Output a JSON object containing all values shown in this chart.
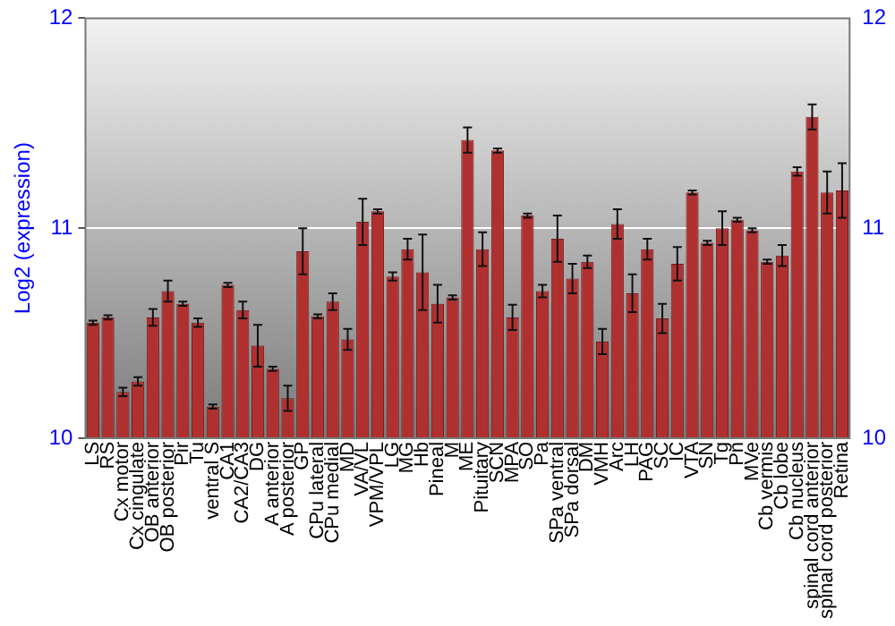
{
  "chart_data": {
    "type": "bar",
    "ylabel": "Log2 (expression)",
    "categories": [
      "LS",
      "RS",
      "Cx motor",
      "Cx cingulate",
      "OB anterior",
      "OB posterior",
      "Pir",
      "Tu",
      "ventral S",
      "CA1",
      "CA2/CA3",
      "DG",
      "A anterior",
      "A posterior",
      "GP",
      "CPu lateral",
      "CPu medial",
      "MD",
      "VA/VL",
      "VPM/VPL",
      "LG",
      "MG",
      "Hb",
      "Pineal",
      "M",
      "ME",
      "Pituitary",
      "SCN",
      "MPA",
      "SO",
      "Pa",
      "SPa ventral",
      "SPa dorsal",
      "DM",
      "VMH",
      "Arc",
      "LH",
      "PAG",
      "SC",
      "IC",
      "VTA",
      "SN",
      "Tg",
      "Pn",
      "MVe",
      "Cb vermis",
      "Cb lobe",
      "Cb nucleus",
      "spinal cord anterior",
      "spinal cord posterior",
      "Retina"
    ],
    "values": [
      10.55,
      10.575,
      10.22,
      10.27,
      10.575,
      10.7,
      10.64,
      10.55,
      10.15,
      10.73,
      10.61,
      10.44,
      10.33,
      10.19,
      10.89,
      10.58,
      10.65,
      10.47,
      11.03,
      11.08,
      10.77,
      10.9,
      10.79,
      10.64,
      10.67,
      11.42,
      10.9,
      11.37,
      10.575,
      11.06,
      10.7,
      10.95,
      10.76,
      10.84,
      10.46,
      11.02,
      10.69,
      10.9,
      10.57,
      10.83,
      11.17,
      10.93,
      11.0,
      11.04,
      10.99,
      10.84,
      10.87,
      11.27,
      11.53,
      11.17,
      11.18
    ],
    "errors": [
      0.01,
      0.01,
      0.02,
      0.02,
      0.04,
      0.05,
      0.01,
      0.02,
      0.01,
      0.01,
      0.04,
      0.1,
      0.01,
      0.06,
      0.11,
      0.01,
      0.04,
      0.05,
      0.11,
      0.01,
      0.02,
      0.05,
      0.18,
      0.09,
      0.01,
      0.06,
      0.08,
      0.01,
      0.06,
      0.01,
      0.03,
      0.11,
      0.07,
      0.03,
      0.06,
      0.07,
      0.09,
      0.05,
      0.07,
      0.08,
      0.01,
      0.01,
      0.08,
      0.01,
      0.01,
      0.01,
      0.05,
      0.02,
      0.06,
      0.1,
      0.13
    ],
    "color": "#b03030",
    "ylim": [
      10,
      12
    ],
    "yticks": [
      10,
      11,
      12
    ],
    "y2lim": [
      10,
      12
    ],
    "y2ticks": [
      10,
      11,
      12
    ],
    "grid": "y",
    "legend": false
  }
}
